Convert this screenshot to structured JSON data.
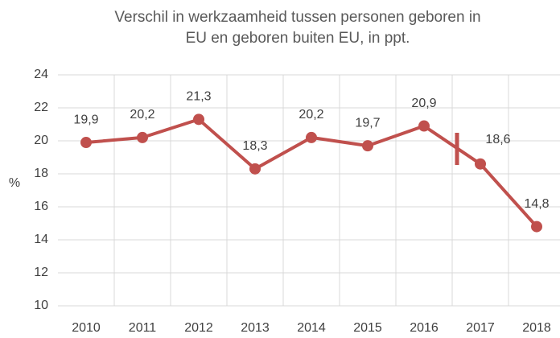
{
  "chart_data": {
    "type": "line",
    "title": [
      "Verschil in werkzaamheid tussen personen geboren in",
      "EU en geboren buiten EU, in ppt."
    ],
    "y_label": "%",
    "categories": [
      "2010",
      "2011",
      "2012",
      "2013",
      "2014",
      "2015",
      "2016",
      "2017",
      "2018"
    ],
    "values": [
      19.9,
      20.2,
      21.3,
      18.3,
      20.2,
      19.7,
      20.9,
      18.6,
      14.8
    ],
    "value_labels": [
      "19,9",
      "20,2",
      "21,3",
      "18,3",
      "20,2",
      "19,7",
      "20,9",
      "18,6",
      "14,8"
    ],
    "color": "#c0504d",
    "ylim": [
      10,
      24
    ],
    "yticks": [
      10,
      12,
      14,
      16,
      18,
      20,
      22,
      24
    ],
    "grid": true
  }
}
